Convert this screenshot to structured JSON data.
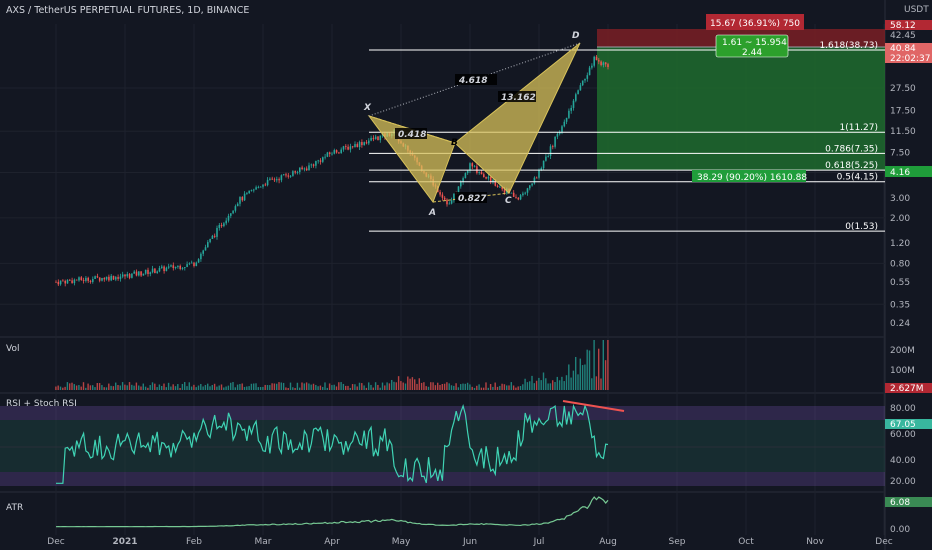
{
  "header": {
    "symbol_title": "AXS / TetherUS PERPETUAL FUTURES, 1D, BINANCE"
  },
  "colors": {
    "background": "#131722",
    "up": "#26a69a",
    "down": "#ef5350",
    "harmonic_fill": "#d8c25a",
    "target_green": "#1e6b2e",
    "stop_red": "#7a1e24",
    "rsi_line": "#3fd3b4",
    "rsi_band": "#7e57c2",
    "atr_line": "#76c893"
  },
  "price_scale": {
    "ticks": [
      "100.00",
      "58.12",
      "42.45",
      "40.84",
      "27.50",
      "17.50",
      "11.50",
      "7.50",
      "5.00",
      "4.16",
      "3.00",
      "2.00",
      "1.20",
      "0.80",
      "0.55",
      "0.35",
      "0.24"
    ],
    "currency": "USDT",
    "current_price": "40.84",
    "countdown": "22:02:37",
    "stop_price": "58.12",
    "target_price": "4.16",
    "last_close_tag": "42.45"
  },
  "time_axis": [
    "Dec",
    "2021",
    "Feb",
    "Mar",
    "Apr",
    "May",
    "Jun",
    "Jul",
    "Aug",
    "Sep",
    "Oct",
    "Nov",
    "Dec"
  ],
  "pattern": {
    "points": [
      "X",
      "A",
      "B",
      "C",
      "D"
    ],
    "ratios": {
      "xa_xd": "4.618",
      "xab": "0.418",
      "abc": "0.827",
      "bcd": "13.162"
    },
    "fib_levels": [
      {
        "label": "1.618(38.73)",
        "price": 38.73
      },
      {
        "label": "1(11.27)",
        "price": 11.27
      },
      {
        "label": "0.786(7.35)",
        "price": 7.35
      },
      {
        "label": "0.618(5.25)",
        "price": 5.25
      },
      {
        "label": "0.5(4.15)",
        "price": 4.15
      },
      {
        "label": "0(1.53)",
        "price": 1.53
      }
    ]
  },
  "position": {
    "stop_box": "15.67 (36.91%) 750",
    "target_box": "38.29 (90.20%) 1610.88",
    "rr_line1": "1.61 ~ 15.954",
    "rr_line2": "2.44"
  },
  "volume": {
    "label": "Vol",
    "ticks": [
      "200M",
      "100M"
    ],
    "last_value": "2.627M"
  },
  "rsi": {
    "label": "RSI + Stoch RSI",
    "ticks": [
      "80.00",
      "60.00",
      "40.00",
      "20.00"
    ],
    "last_value": "67.05"
  },
  "atr": {
    "label": "ATR",
    "ticks": [
      "6.08",
      "0.00"
    ],
    "last_value": "6.08"
  },
  "chart_data": [
    {
      "type": "candlestick",
      "title": "AXS / TetherUS PERPETUAL FUTURES, 1D, BINANCE",
      "scale": "log",
      "x_range": [
        "2020-12",
        "2021-12"
      ],
      "ylim": [
        0.24,
        100
      ],
      "approx_close_path": [
        {
          "t": "2020-12",
          "v": 0.55
        },
        {
          "t": "2021-01",
          "v": 0.62
        },
        {
          "t": "2021-02",
          "v": 0.8
        },
        {
          "t": "2021-02-20",
          "v": 2.8
        },
        {
          "t": "2021-03",
          "v": 4.0
        },
        {
          "t": "2021-03-20",
          "v": 5.5
        },
        {
          "t": "2021-04",
          "v": 7.5
        },
        {
          "t": "2021-04-28",
          "v": 11.27
        },
        {
          "t": "2021-05-22",
          "v": 2.6
        },
        {
          "t": "2021-06",
          "v": 5.8
        },
        {
          "t": "2021-06-22",
          "v": 2.9
        },
        {
          "t": "2021-07",
          "v": 5.0
        },
        {
          "t": "2021-07-25",
          "v": 50.0
        },
        {
          "t": "2021-07-31",
          "v": 40.84
        }
      ]
    },
    {
      "type": "line",
      "title": "RSI + Stoch RSI",
      "ylim": [
        20,
        80
      ],
      "last": 67.05
    },
    {
      "type": "line",
      "title": "ATR",
      "last": 6.08
    }
  ]
}
